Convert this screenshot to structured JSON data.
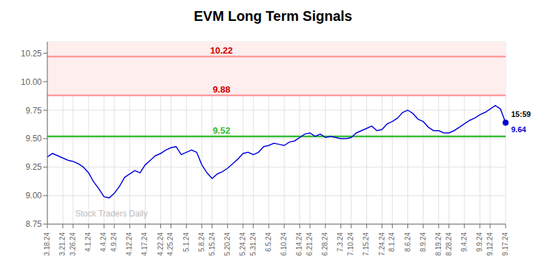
{
  "chart_data": {
    "type": "line",
    "title": "EVM Long Term Signals",
    "categories": [
      "3.18.24",
      null,
      null,
      "3.21.24",
      null,
      "3.26.24",
      null,
      null,
      "4.1.24",
      null,
      null,
      "4.4.24",
      null,
      "4.9.24",
      null,
      null,
      "4.12.24",
      null,
      null,
      "4.17.24",
      null,
      null,
      "4.22.24",
      null,
      "4.25.24",
      null,
      null,
      "5.1.24",
      null,
      null,
      "5.8.24",
      null,
      "5.15.24",
      null,
      null,
      "5.20.24",
      null,
      null,
      "5.24.24",
      null,
      "5.31.24",
      null,
      null,
      "6.5.24",
      null,
      null,
      "6.10.24",
      null,
      null,
      "6.14.24",
      null,
      "6.21.24",
      null,
      null,
      "6.28.24",
      null,
      null,
      "7.3.24",
      null,
      "7.10.24",
      null,
      null,
      "7.15.24",
      null,
      null,
      "7.24.24",
      null,
      "8.1.24",
      null,
      null,
      "8.6.24",
      null,
      null,
      "8.9.24",
      null,
      null,
      "8.19.24",
      null,
      "8.28.24",
      null,
      null,
      "9.4.24",
      null,
      null,
      "9.9.24",
      null,
      "9.12.24",
      null,
      null,
      "9.17.24"
    ],
    "values": [
      9.34,
      9.37,
      9.35,
      9.33,
      9.31,
      9.3,
      9.28,
      9.25,
      9.2,
      9.12,
      9.06,
      8.99,
      8.98,
      9.02,
      9.08,
      9.16,
      9.19,
      9.22,
      9.2,
      9.27,
      9.31,
      9.35,
      9.37,
      9.4,
      9.42,
      9.43,
      9.36,
      9.38,
      9.4,
      9.38,
      9.27,
      9.2,
      9.15,
      9.19,
      9.21,
      9.24,
      9.28,
      9.32,
      9.37,
      9.38,
      9.36,
      9.38,
      9.43,
      9.44,
      9.46,
      9.45,
      9.44,
      9.47,
      9.48,
      9.51,
      9.54,
      9.55,
      9.52,
      9.54,
      9.51,
      9.52,
      9.51,
      9.5,
      9.5,
      9.51,
      9.55,
      9.57,
      9.59,
      9.61,
      9.57,
      9.58,
      9.63,
      9.65,
      9.68,
      9.73,
      9.75,
      9.72,
      9.67,
      9.65,
      9.6,
      9.57,
      9.57,
      9.55,
      9.55,
      9.57,
      9.6,
      9.63,
      9.66,
      9.68,
      9.71,
      9.73,
      9.76,
      9.79,
      9.76,
      9.64
    ],
    "color": "#0000dd",
    "ylim": [
      8.75,
      10.35
    ],
    "yticks": [
      8.75,
      {
        "value": 9.0,
        "label": "9.00"
      },
      9.25,
      {
        "value": 9.5,
        "label": "9.50"
      },
      9.75,
      {
        "value": 10.0,
        "label": "10.00"
      },
      10.25
    ],
    "grid": true,
    "hlines": [
      {
        "y": 9.52,
        "label": "9.52",
        "color": "#33bb33",
        "label_color": "#33bb33"
      },
      {
        "y": 9.88,
        "label": "9.88",
        "color": "#ff9999",
        "label_color": "#cc0000"
      },
      {
        "y": 10.22,
        "label": "10.22",
        "color": "#ff9999",
        "label_color": "#cc0000"
      }
    ],
    "band": {
      "from": 9.88,
      "color": "#ffeeee"
    },
    "last_point": {
      "label": "15:59",
      "value": 9.64,
      "color": "#0000cc"
    },
    "watermark": "Stock Traders Daily"
  }
}
